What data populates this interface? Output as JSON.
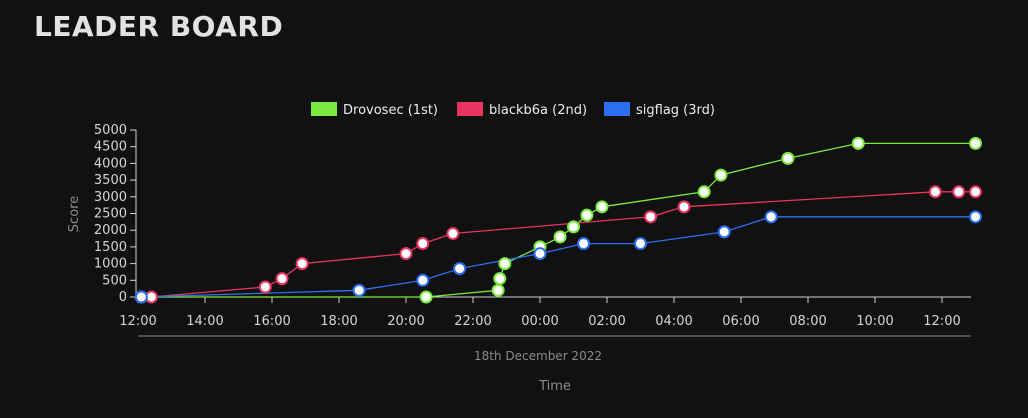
{
  "page": {
    "title": "LEADER BOARD"
  },
  "chart_data": {
    "type": "line",
    "xlabel": "Time",
    "x_sublabel": "18th December 2022",
    "ylabel": "Score",
    "ylim": [
      0,
      5000
    ],
    "y_ticks": [
      0,
      500,
      1000,
      1500,
      2000,
      2500,
      3000,
      3500,
      4000,
      4500,
      5000
    ],
    "x_tick_labels": [
      "12:00",
      "14:00",
      "16:00",
      "18:00",
      "20:00",
      "22:00",
      "00:00",
      "02:00",
      "04:00",
      "06:00",
      "08:00",
      "10:00",
      "12:00"
    ],
    "x_unit": "hours",
    "xlim": [
      0,
      25.3
    ],
    "legend_position": "top-center",
    "grid": false,
    "series": [
      {
        "name": "Drovosec (1st)",
        "color": "#79ea3f",
        "points": [
          [
            0.1,
            0
          ],
          [
            8.6,
            0
          ],
          [
            10.75,
            200
          ],
          [
            10.8,
            550
          ],
          [
            10.95,
            1000
          ],
          [
            12.0,
            1500
          ],
          [
            12.6,
            1800
          ],
          [
            13.0,
            2100
          ],
          [
            13.4,
            2450
          ],
          [
            13.85,
            2700
          ],
          [
            16.9,
            3150
          ],
          [
            17.4,
            3650
          ],
          [
            19.4,
            4150
          ],
          [
            21.5,
            4600
          ],
          [
            25.0,
            4600
          ]
        ]
      },
      {
        "name": "blackb6a (2nd)",
        "color": "#e8355f",
        "points": [
          [
            0.4,
            0
          ],
          [
            3.8,
            300
          ],
          [
            4.3,
            550
          ],
          [
            4.9,
            1000
          ],
          [
            8.0,
            1300
          ],
          [
            8.5,
            1600
          ],
          [
            9.4,
            1900
          ],
          [
            15.3,
            2400
          ],
          [
            16.3,
            2700
          ],
          [
            23.8,
            3150
          ],
          [
            24.5,
            3150
          ],
          [
            25.0,
            3150
          ]
        ]
      },
      {
        "name": "sigflag (3rd)",
        "color": "#2d6ff2",
        "points": [
          [
            0.1,
            0
          ],
          [
            6.6,
            200
          ],
          [
            8.5,
            500
          ],
          [
            9.6,
            850
          ],
          [
            12.0,
            1300
          ],
          [
            13.3,
            1600
          ],
          [
            15.0,
            1600
          ],
          [
            17.5,
            1950
          ],
          [
            18.9,
            2400
          ],
          [
            25.0,
            2400
          ]
        ]
      }
    ]
  }
}
